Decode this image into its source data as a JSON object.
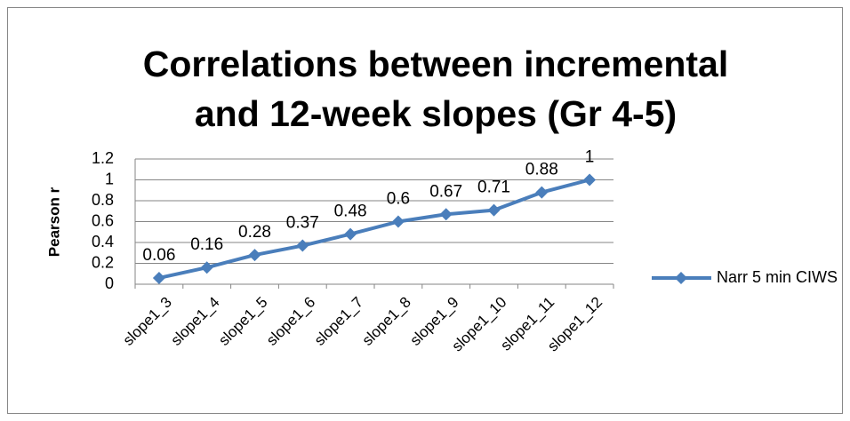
{
  "chart_data": {
    "type": "line",
    "title": [
      "Correlations between incremental",
      "and 12-week slopes (Gr 4-5)"
    ],
    "y_label": "Pearson r",
    "categories": [
      "slope1_3",
      "slope1_4",
      "slope1_5",
      "slope1_6",
      "slope1_7",
      "slope1_8",
      "slope1_9",
      "slope1_10",
      "slope1_11",
      "slope1_12"
    ],
    "series": [
      {
        "name": "Narr 5 min CIWS",
        "color": "#4a7ebb",
        "values": [
          0.06,
          0.16,
          0.28,
          0.37,
          0.48,
          0.6,
          0.67,
          0.71,
          0.88,
          1
        ]
      }
    ],
    "ylim": [
      0,
      1.2
    ],
    "yticks": [
      0,
      0.2,
      0.4,
      0.6,
      0.8,
      1,
      1.2
    ],
    "grid": true,
    "legend": "right"
  }
}
